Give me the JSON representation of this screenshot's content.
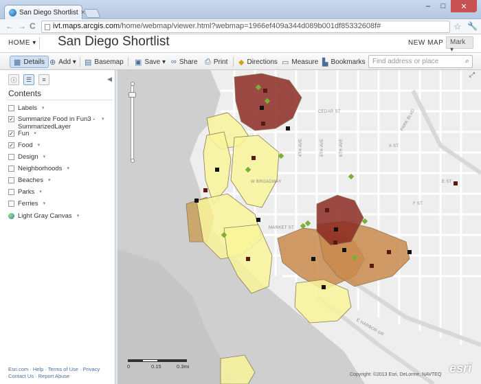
{
  "browser": {
    "tab_title": "San Diego Shortlist",
    "tab_close": "×",
    "url_host": "ivt.maps.arcgis.com",
    "url_path": "/home/webmap/viewer.html?webmap=1966ef409a344d089b001df85332608f#",
    "back_glyph": "←",
    "forward_glyph": "→",
    "reload_glyph": "C",
    "star_glyph": "☆",
    "wrench_glyph": "🔧",
    "minimize_glyph": "–",
    "maximize_glyph": "□",
    "close_glyph": "✕"
  },
  "header": {
    "home_label": "HOME ▾",
    "map_title": "San Diego Shortlist",
    "new_map_label": "NEW MAP",
    "user_label": "Mark ▾"
  },
  "toolbar": {
    "details": "Details",
    "add": "Add ▾",
    "basemap": "Basemap",
    "save": "Save ▾",
    "share": "Share",
    "print": "Print",
    "directions": "Directions",
    "measure": "Measure",
    "bookmarks": "Bookmarks",
    "search_placeholder": "Find address or place"
  },
  "sidebar": {
    "contents_title": "Contents",
    "layers": [
      {
        "label": "Labels",
        "checked": false
      },
      {
        "label": "Summarize Food in Fun3 - SummarizedLayer",
        "checked": true
      },
      {
        "label": "Fun",
        "checked": true
      },
      {
        "label": "Food",
        "checked": true
      },
      {
        "label": "Design",
        "checked": false
      },
      {
        "label": "Neighborhoods",
        "checked": false
      },
      {
        "label": "Beaches",
        "checked": false
      },
      {
        "label": "Parks",
        "checked": false
      },
      {
        "label": "Ferries",
        "checked": false
      }
    ],
    "basemap_layer": "Light Gray Canvas",
    "footer_line1": "Esri.com · Help · Terms of Use · Privacy",
    "footer_line2": "Contact Us · Report Abuse"
  },
  "map": {
    "street_labels": [
      "CEDAR ST",
      "A ST",
      "E ST",
      "F ST",
      "MARKET ST",
      "PARK BLVD",
      "W BROADWAY",
      "E HARBOR DR",
      "4TH AVE",
      "5TH AVE",
      "6TH AVE"
    ],
    "scale_labels": [
      "0",
      "0.15",
      "0.3mi"
    ],
    "copyright": "Copyright: ©2013 Esri, DeLorme, NAVTEQ",
    "esri_logo": "esri",
    "colors": {
      "water": "#cfcfcf",
      "land": "#eeeeee",
      "yellow_fill": "#f8f59a",
      "brown_fill": "#c98a4e",
      "dark_red_fill": "#8b2a22",
      "tan_fill": "#c9a05a",
      "point_green": "#7bb038",
      "point_black": "#111111"
    }
  }
}
